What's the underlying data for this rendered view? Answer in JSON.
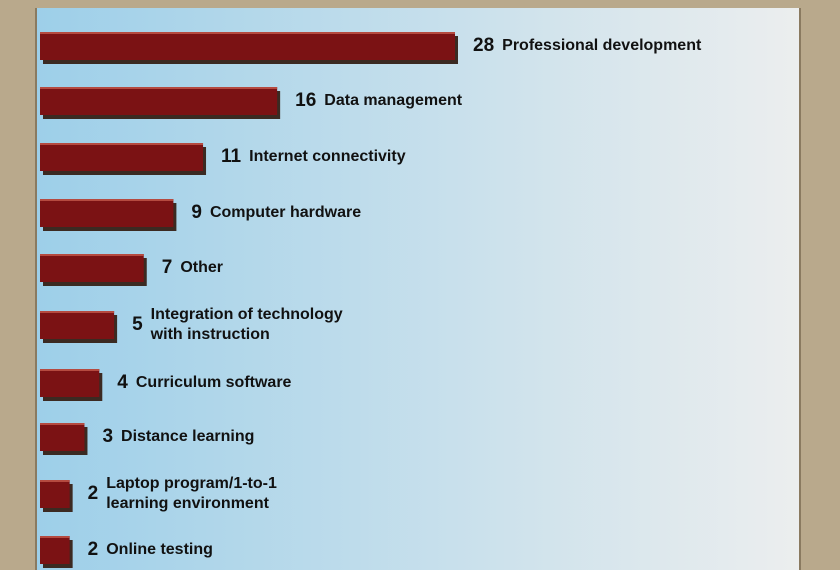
{
  "chart_data": {
    "type": "bar",
    "orientation": "horizontal",
    "categories": [
      "Professional development",
      "Data management",
      "Internet connectivity",
      "Computer hardware",
      "Other",
      "Integration of technology\nwith instruction",
      "Curriculum software",
      "Distance learning",
      "Laptop program/1-to-1\nlearning environment",
      "Online testing"
    ],
    "values": [
      28,
      16,
      11,
      9,
      7,
      5,
      4,
      3,
      2,
      2
    ],
    "color": "#7b1214"
  }
}
